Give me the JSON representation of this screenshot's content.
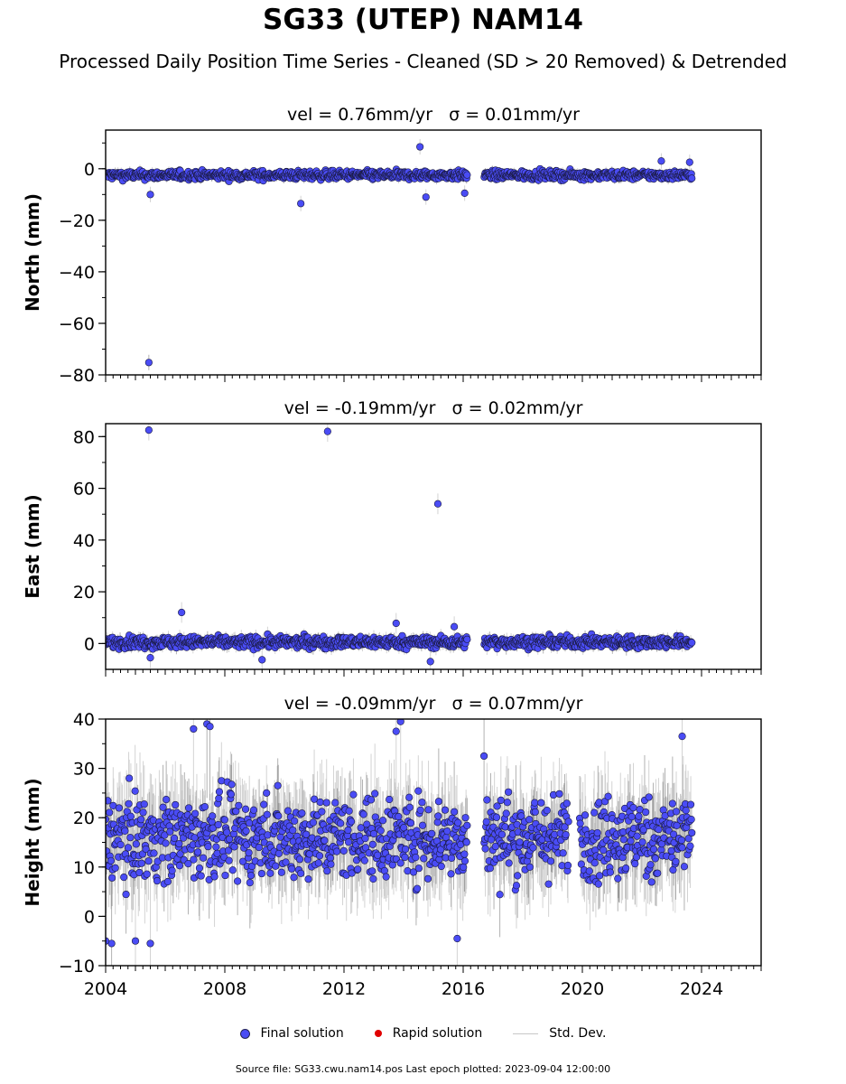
{
  "title": "SG33 (UTEP) NAM14",
  "subtitle": "Processed Daily Position Time Series - Cleaned (SD > 20 Removed) & Detrended",
  "colors": {
    "final": "#4a4cf5",
    "final_edge": "#1a1a40",
    "rapid": "#e00000",
    "std_dev": "#c8c8c8",
    "std_dev_dark": "#555555"
  },
  "legend": {
    "final": "Final solution",
    "rapid": "Rapid solution",
    "std_dev": "Std. Dev."
  },
  "footer": {
    "source_label": "Source file: SG33.cwu.nam14.pos",
    "last_epoch_label": "Last epoch plotted: 2023-09-04 12:00:00"
  },
  "chart_data": [
    {
      "type": "scatter",
      "panel": "north",
      "title": "vel = 0.76mm/yr   σ = 0.01mm/yr",
      "ylabel": "North (mm)",
      "xlabel": "",
      "xlim": [
        2004,
        2026
      ],
      "ylim": [
        -80,
        15
      ],
      "yticks": [
        0,
        -20,
        -40,
        -60,
        -80
      ],
      "ytick_labels": [
        "0",
        "−20",
        "−40",
        "−60",
        "−80"
      ],
      "xticks": [
        2004,
        2008,
        2012,
        2016,
        2020,
        2024
      ],
      "xtick_labels": [],
      "baseline": -2.5,
      "spread": 1.2,
      "data_start": 2004.0,
      "data_end": 2023.68,
      "gaps": [
        [
          2016.15,
          2016.7
        ]
      ],
      "outliers": [
        [
          2005.45,
          -75.2
        ],
        [
          2005.5,
          -10
        ],
        [
          2010.55,
          -13.5
        ],
        [
          2014.55,
          8.5
        ],
        [
          2014.75,
          -11
        ],
        [
          2016.05,
          -9.5
        ],
        [
          2022.65,
          3
        ],
        [
          2023.6,
          2.5
        ]
      ]
    },
    {
      "type": "scatter",
      "panel": "east",
      "title": "vel = -0.19mm/yr   σ = 0.02mm/yr",
      "ylabel": "East (mm)",
      "xlabel": "",
      "xlim": [
        2004,
        2026
      ],
      "ylim": [
        -10,
        85
      ],
      "yticks": [
        0,
        20,
        40,
        60,
        80
      ],
      "ytick_labels": [
        "0",
        "20",
        "40",
        "60",
        "80"
      ],
      "xticks": [
        2004,
        2008,
        2012,
        2016,
        2020,
        2024
      ],
      "xtick_labels": [],
      "baseline": 0.5,
      "spread": 1.6,
      "data_start": 2004.0,
      "data_end": 2023.68,
      "gaps": [
        [
          2016.15,
          2016.7
        ]
      ],
      "outliers": [
        [
          2005.45,
          82.5
        ],
        [
          2011.45,
          82
        ],
        [
          2015.15,
          54
        ],
        [
          2006.55,
          12
        ],
        [
          2013.75,
          7.8
        ],
        [
          2015.7,
          6.5
        ],
        [
          2014.9,
          -7
        ],
        [
          2009.25,
          -6.3
        ],
        [
          2005.5,
          -5.5
        ]
      ]
    },
    {
      "type": "scatter",
      "panel": "height",
      "title": "vel = -0.09mm/yr   σ = 0.07mm/yr",
      "ylabel": "Height (mm)",
      "xlabel": "",
      "xlim": [
        2004,
        2026
      ],
      "ylim": [
        -10,
        40
      ],
      "yticks": [
        -10,
        0,
        10,
        20,
        30,
        40
      ],
      "ytick_labels": [
        "−10",
        "0",
        "10",
        "20",
        "30",
        "40"
      ],
      "xticks": [
        2004,
        2008,
        2012,
        2016,
        2020,
        2024
      ],
      "xtick_labels": [
        "2004",
        "2008",
        "2012",
        "2016",
        "2020",
        "2024"
      ],
      "baseline": 16,
      "spread": 6,
      "data_start": 2004.0,
      "data_end": 2023.68,
      "gaps": [
        [
          2016.15,
          2016.7
        ],
        [
          2019.55,
          2019.9
        ]
      ],
      "outliers": [
        [
          2007.4,
          39
        ],
        [
          2007.5,
          38.5
        ],
        [
          2006.95,
          38
        ],
        [
          2013.9,
          39.5
        ],
        [
          2013.75,
          37.5
        ],
        [
          2023.35,
          36.5
        ],
        [
          2016.7,
          32.5
        ],
        [
          2004.2,
          -5.5
        ],
        [
          2005.0,
          -5
        ],
        [
          2004.0,
          -5
        ],
        [
          2005.5,
          -5.5
        ],
        [
          2015.8,
          -4.5
        ]
      ]
    }
  ]
}
